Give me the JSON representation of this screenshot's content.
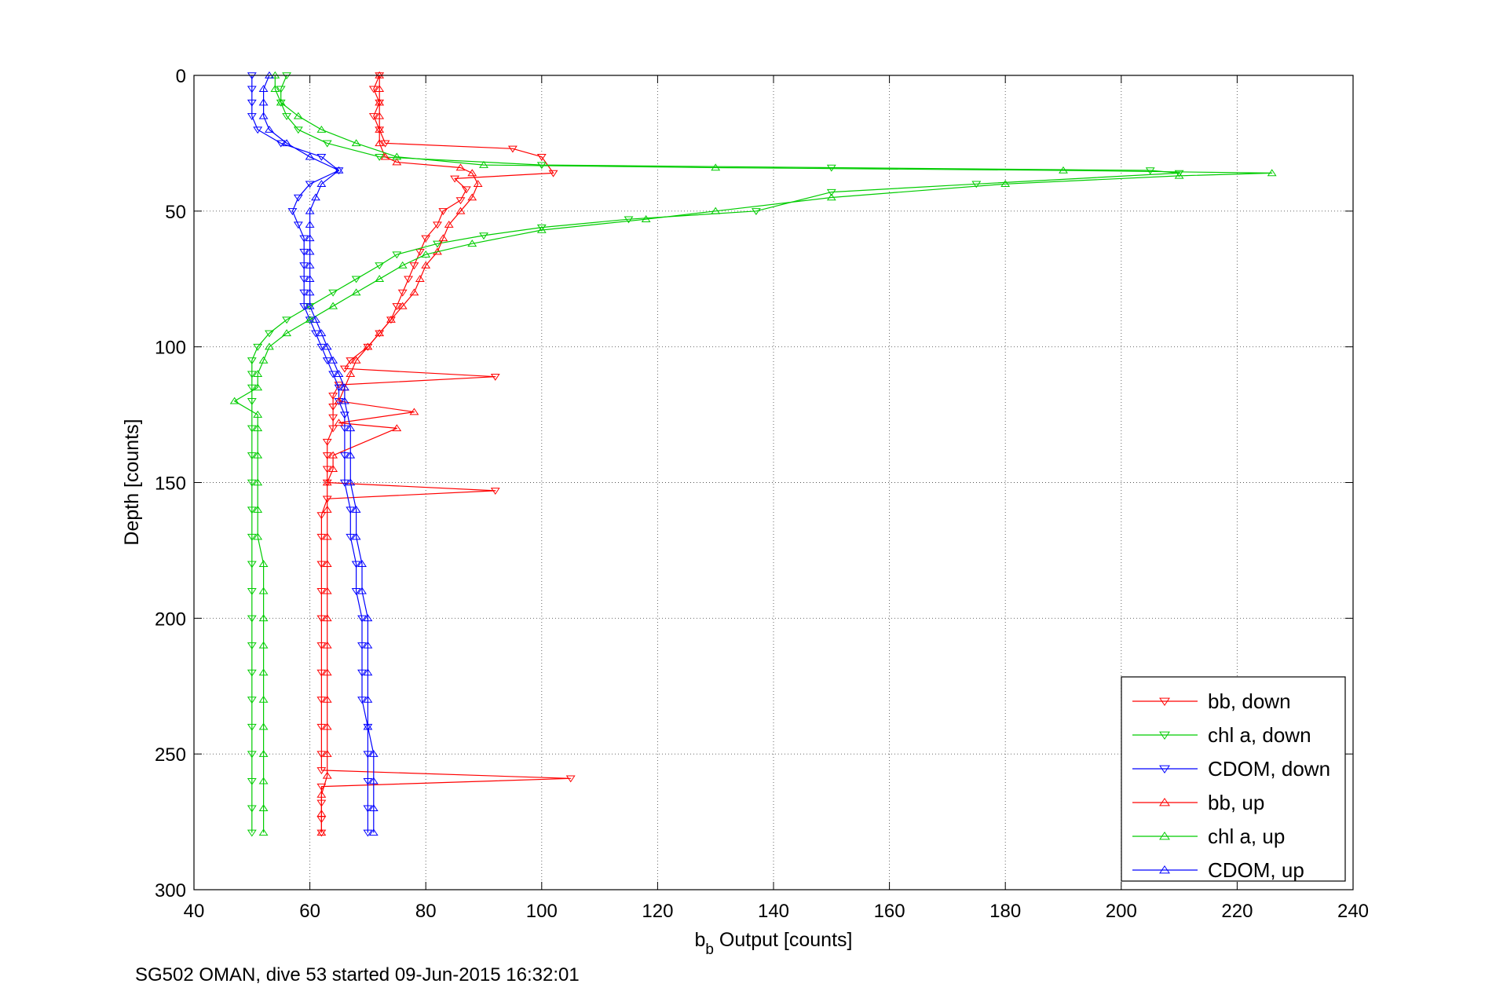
{
  "chart_data": {
    "type": "line",
    "xlabel_main": "b",
    "xlabel_sub": "b",
    "xlabel_rest": " Output [counts]",
    "ylabel": "Depth [counts]",
    "caption": "SG502 OMAN, dive 53 started 09-Jun-2015 16:32:01",
    "xlim": [
      40,
      240
    ],
    "ylim": [
      0,
      300
    ],
    "y_reversed": true,
    "x_ticks": [
      "40",
      "60",
      "80",
      "100",
      "120",
      "140",
      "160",
      "180",
      "200",
      "220",
      "240"
    ],
    "y_ticks": [
      "0",
      "50",
      "100",
      "150",
      "200",
      "250",
      "300"
    ],
    "grid": true,
    "legend_position": "bottom-right",
    "series": [
      {
        "name": "bb, down",
        "color": "#ff0000",
        "marker": "triangle-down",
        "points": [
          [
            72,
            0
          ],
          [
            71,
            5
          ],
          [
            72,
            10
          ],
          [
            71,
            15
          ],
          [
            72,
            20
          ],
          [
            73,
            25
          ],
          [
            95,
            27
          ],
          [
            100,
            30
          ],
          [
            102,
            36
          ],
          [
            85,
            38
          ],
          [
            87,
            42
          ],
          [
            86,
            46
          ],
          [
            83,
            50
          ],
          [
            82,
            55
          ],
          [
            80,
            60
          ],
          [
            79,
            65
          ],
          [
            78,
            70
          ],
          [
            77,
            75
          ],
          [
            76,
            80
          ],
          [
            75,
            85
          ],
          [
            74,
            90
          ],
          [
            72,
            95
          ],
          [
            70,
            100
          ],
          [
            67,
            105
          ],
          [
            66,
            108
          ],
          [
            92,
            111
          ],
          [
            65,
            114
          ],
          [
            64,
            118
          ],
          [
            64,
            122
          ],
          [
            64,
            126
          ],
          [
            64,
            130
          ],
          [
            63,
            135
          ],
          [
            63,
            140
          ],
          [
            63,
            145
          ],
          [
            63,
            150
          ],
          [
            92,
            153
          ],
          [
            63,
            156
          ],
          [
            62,
            162
          ],
          [
            62,
            170
          ],
          [
            62,
            180
          ],
          [
            62,
            190
          ],
          [
            62,
            200
          ],
          [
            62,
            210
          ],
          [
            62,
            220
          ],
          [
            62,
            230
          ],
          [
            62,
            240
          ],
          [
            62,
            250
          ],
          [
            62,
            256
          ],
          [
            105,
            259
          ],
          [
            62,
            262
          ],
          [
            62,
            268
          ],
          [
            62,
            274
          ],
          [
            62,
            279
          ]
        ]
      },
      {
        "name": "chl a, down",
        "color": "#00cc00",
        "marker": "triangle-down",
        "points": [
          [
            56,
            0
          ],
          [
            55,
            5
          ],
          [
            55,
            10
          ],
          [
            56,
            15
          ],
          [
            58,
            20
          ],
          [
            63,
            25
          ],
          [
            72,
            30
          ],
          [
            100,
            33
          ],
          [
            150,
            34
          ],
          [
            205,
            35
          ],
          [
            210,
            36
          ],
          [
            175,
            40
          ],
          [
            150,
            43
          ],
          [
            137,
            50
          ],
          [
            115,
            53
          ],
          [
            100,
            56
          ],
          [
            90,
            59
          ],
          [
            82,
            62
          ],
          [
            75,
            66
          ],
          [
            72,
            70
          ],
          [
            68,
            75
          ],
          [
            64,
            80
          ],
          [
            60,
            85
          ],
          [
            56,
            90
          ],
          [
            53,
            95
          ],
          [
            51,
            100
          ],
          [
            50,
            105
          ],
          [
            50,
            110
          ],
          [
            50,
            115
          ],
          [
            50,
            120
          ],
          [
            50,
            130
          ],
          [
            50,
            140
          ],
          [
            50,
            150
          ],
          [
            50,
            160
          ],
          [
            50,
            170
          ],
          [
            50,
            180
          ],
          [
            50,
            190
          ],
          [
            50,
            200
          ],
          [
            50,
            210
          ],
          [
            50,
            220
          ],
          [
            50,
            230
          ],
          [
            50,
            240
          ],
          [
            50,
            250
          ],
          [
            50,
            260
          ],
          [
            50,
            270
          ],
          [
            50,
            279
          ]
        ]
      },
      {
        "name": "CDOM, down",
        "color": "#0000ff",
        "marker": "triangle-down",
        "points": [
          [
            50,
            0
          ],
          [
            50,
            5
          ],
          [
            50,
            10
          ],
          [
            50,
            15
          ],
          [
            51,
            20
          ],
          [
            55,
            25
          ],
          [
            62,
            30
          ],
          [
            65,
            35
          ],
          [
            60,
            40
          ],
          [
            58,
            45
          ],
          [
            57,
            50
          ],
          [
            58,
            55
          ],
          [
            59,
            60
          ],
          [
            59,
            65
          ],
          [
            59,
            70
          ],
          [
            59,
            75
          ],
          [
            59,
            80
          ],
          [
            59,
            85
          ],
          [
            60,
            90
          ],
          [
            61,
            95
          ],
          [
            62,
            100
          ],
          [
            63,
            105
          ],
          [
            64,
            110
          ],
          [
            65,
            115
          ],
          [
            65,
            120
          ],
          [
            66,
            125
          ],
          [
            66,
            130
          ],
          [
            66,
            140
          ],
          [
            66,
            150
          ],
          [
            67,
            160
          ],
          [
            67,
            170
          ],
          [
            68,
            180
          ],
          [
            68,
            190
          ],
          [
            69,
            200
          ],
          [
            69,
            210
          ],
          [
            69,
            220
          ],
          [
            69,
            230
          ],
          [
            70,
            240
          ],
          [
            70,
            250
          ],
          [
            70,
            260
          ],
          [
            70,
            270
          ],
          [
            70,
            279
          ]
        ]
      },
      {
        "name": "bb, up",
        "color": "#ff0000",
        "marker": "triangle-up",
        "points": [
          [
            62,
            279
          ],
          [
            62,
            272
          ],
          [
            62,
            265
          ],
          [
            63,
            258
          ],
          [
            63,
            250
          ],
          [
            63,
            240
          ],
          [
            63,
            230
          ],
          [
            63,
            220
          ],
          [
            63,
            210
          ],
          [
            63,
            200
          ],
          [
            63,
            190
          ],
          [
            63,
            180
          ],
          [
            63,
            170
          ],
          [
            63,
            160
          ],
          [
            63,
            150
          ],
          [
            64,
            145
          ],
          [
            64,
            140
          ],
          [
            75,
            130
          ],
          [
            65,
            128
          ],
          [
            78,
            124
          ],
          [
            65,
            120
          ],
          [
            66,
            115
          ],
          [
            67,
            110
          ],
          [
            68,
            105
          ],
          [
            70,
            100
          ],
          [
            72,
            95
          ],
          [
            74,
            90
          ],
          [
            76,
            85
          ],
          [
            78,
            80
          ],
          [
            79,
            75
          ],
          [
            80,
            70
          ],
          [
            82,
            65
          ],
          [
            83,
            60
          ],
          [
            84,
            55
          ],
          [
            86,
            50
          ],
          [
            88,
            45
          ],
          [
            89,
            40
          ],
          [
            88,
            36
          ],
          [
            86,
            34
          ],
          [
            75,
            32
          ],
          [
            73,
            30
          ],
          [
            72,
            25
          ],
          [
            72,
            20
          ],
          [
            72,
            15
          ],
          [
            72,
            10
          ],
          [
            72,
            5
          ],
          [
            72,
            0
          ]
        ]
      },
      {
        "name": "chl a, up",
        "color": "#00cc00",
        "marker": "triangle-up",
        "points": [
          [
            52,
            279
          ],
          [
            52,
            270
          ],
          [
            52,
            260
          ],
          [
            52,
            250
          ],
          [
            52,
            240
          ],
          [
            52,
            230
          ],
          [
            52,
            220
          ],
          [
            52,
            210
          ],
          [
            52,
            200
          ],
          [
            52,
            190
          ],
          [
            52,
            180
          ],
          [
            51,
            170
          ],
          [
            51,
            160
          ],
          [
            51,
            150
          ],
          [
            51,
            140
          ],
          [
            51,
            130
          ],
          [
            51,
            125
          ],
          [
            47,
            120
          ],
          [
            51,
            115
          ],
          [
            51,
            110
          ],
          [
            52,
            105
          ],
          [
            53,
            100
          ],
          [
            56,
            95
          ],
          [
            60,
            90
          ],
          [
            64,
            85
          ],
          [
            68,
            80
          ],
          [
            72,
            75
          ],
          [
            76,
            70
          ],
          [
            80,
            66
          ],
          [
            88,
            62
          ],
          [
            100,
            57
          ],
          [
            118,
            53
          ],
          [
            130,
            50
          ],
          [
            150,
            45
          ],
          [
            180,
            40
          ],
          [
            210,
            37
          ],
          [
            226,
            36
          ],
          [
            190,
            35
          ],
          [
            130,
            34
          ],
          [
            90,
            33
          ],
          [
            75,
            30
          ],
          [
            68,
            25
          ],
          [
            62,
            20
          ],
          [
            58,
            15
          ],
          [
            55,
            10
          ],
          [
            54,
            5
          ],
          [
            54,
            0
          ]
        ]
      },
      {
        "name": "CDOM, up",
        "color": "#0000ff",
        "marker": "triangle-up",
        "points": [
          [
            71,
            279
          ],
          [
            71,
            270
          ],
          [
            71,
            260
          ],
          [
            71,
            250
          ],
          [
            70,
            240
          ],
          [
            70,
            230
          ],
          [
            70,
            220
          ],
          [
            70,
            210
          ],
          [
            70,
            200
          ],
          [
            69,
            190
          ],
          [
            69,
            180
          ],
          [
            68,
            170
          ],
          [
            68,
            160
          ],
          [
            67,
            150
          ],
          [
            67,
            140
          ],
          [
            67,
            130
          ],
          [
            66,
            120
          ],
          [
            66,
            115
          ],
          [
            65,
            110
          ],
          [
            64,
            105
          ],
          [
            63,
            100
          ],
          [
            62,
            95
          ],
          [
            61,
            90
          ],
          [
            60,
            85
          ],
          [
            60,
            80
          ],
          [
            60,
            75
          ],
          [
            60,
            70
          ],
          [
            60,
            65
          ],
          [
            60,
            60
          ],
          [
            60,
            55
          ],
          [
            60,
            50
          ],
          [
            61,
            45
          ],
          [
            62,
            40
          ],
          [
            65,
            35
          ],
          [
            60,
            30
          ],
          [
            56,
            25
          ],
          [
            53,
            20
          ],
          [
            52,
            15
          ],
          [
            52,
            10
          ],
          [
            52,
            5
          ],
          [
            53,
            0
          ]
        ]
      }
    ]
  }
}
